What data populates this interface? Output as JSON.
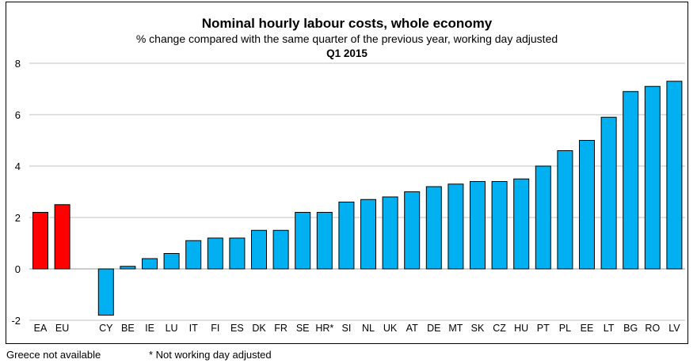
{
  "chart_data": {
    "type": "bar",
    "title": "Nominal hourly labour costs, whole economy",
    "subtitle": "% change compared with the same quarter of the previous year, working day adjusted",
    "period": "Q1 2015",
    "xlabel": "",
    "ylabel": "",
    "ylim": [
      -2,
      8
    ],
    "yticks": [
      -2,
      0,
      2,
      4,
      6,
      8
    ],
    "grid": true,
    "categories": [
      "EA",
      "EU",
      "",
      "CY",
      "BE",
      "IE",
      "LU",
      "IT",
      "FI",
      "ES",
      "DK",
      "FR",
      "SE",
      "HR*",
      "SI",
      "NL",
      "UK",
      "AT",
      "DE",
      "MT",
      "SK",
      "CZ",
      "HU",
      "PT",
      "PL",
      "EE",
      "LT",
      "BG",
      "RO",
      "LV"
    ],
    "values": [
      2.2,
      2.5,
      null,
      -1.8,
      0.1,
      0.4,
      0.6,
      1.1,
      1.2,
      1.2,
      1.5,
      1.5,
      2.2,
      2.2,
      2.6,
      2.7,
      2.8,
      3.0,
      3.2,
      3.3,
      3.4,
      3.4,
      3.5,
      4.0,
      4.6,
      5.0,
      5.9,
      6.9,
      7.1,
      7.3
    ],
    "colors": {
      "aggregate": "#ff0000",
      "country": "#00b0f0",
      "outline": "#000000",
      "grid": "#c0c0c0"
    },
    "aggregates": [
      "EA",
      "EU"
    ]
  },
  "footnotes": {
    "left": "Greece not available",
    "right": "*  Not working day adjusted"
  }
}
